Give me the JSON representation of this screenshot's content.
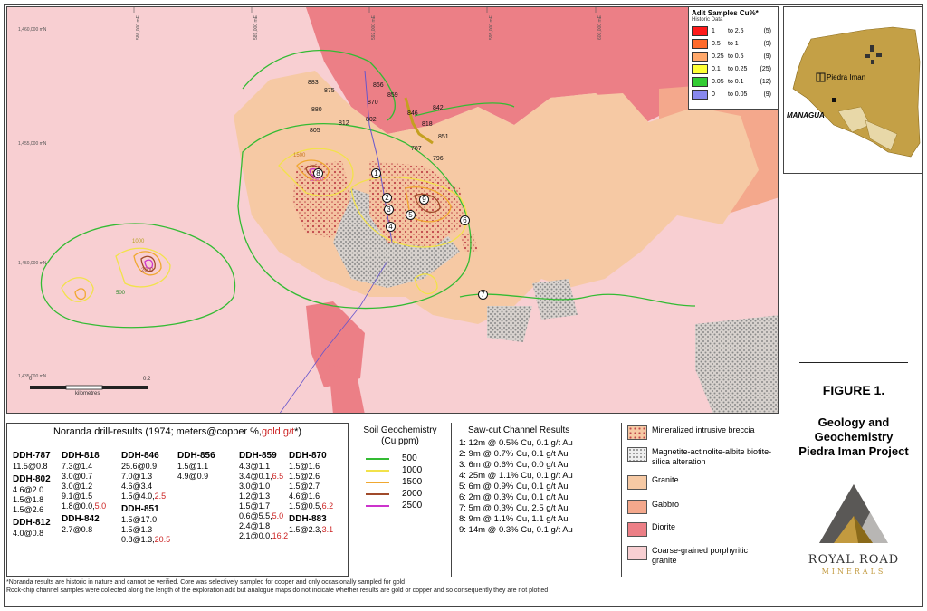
{
  "map": {
    "coords_y": [
      "1,460,000 mN",
      "1,455,000 mN",
      "1,450,000 mN",
      "1,435,000 mN"
    ],
    "coords_x": [
      "586,000 mE",
      "589,000 mE",
      "592,000 mE",
      "595,000 mE",
      "600,000 mE"
    ],
    "drill_holes": [
      "883",
      "875",
      "866",
      "870",
      "859",
      "842",
      "880",
      "846",
      "818",
      "802",
      "812",
      "805",
      "851",
      "787",
      "796"
    ],
    "channel_numbers": [
      "1",
      "2",
      "3",
      "4",
      "5",
      "6",
      "7",
      "8",
      "9"
    ],
    "contour_labels": [
      "500",
      "1000",
      "1500",
      "2000",
      "2500"
    ],
    "scale_start": "0",
    "scale_end": "0.2",
    "scale_unit": "kilometres"
  },
  "adit_legend": {
    "title": "Adit Samples Cu%*",
    "subtitle": "Historic Data",
    "rows": [
      {
        "lo": "1",
        "hi": "to 2.5",
        "count": "(5)",
        "color": "#ff1a1a"
      },
      {
        "lo": "0.5",
        "hi": "to 1",
        "count": "(9)",
        "color": "#ff6a2a"
      },
      {
        "lo": "0.25",
        "hi": "to 0.5",
        "count": "(9)",
        "color": "#ffa86a"
      },
      {
        "lo": "0.1",
        "hi": "to 0.25",
        "count": "(25)",
        "color": "#ffff33"
      },
      {
        "lo": "0.05",
        "hi": "to 0.1",
        "count": "(12)",
        "color": "#33cc33"
      },
      {
        "lo": "0",
        "hi": "to 0.05",
        "count": "(9)",
        "color": "#8888ee"
      }
    ]
  },
  "inset": {
    "place_label": "Piedra Iman",
    "capital_label": "MANAGUA"
  },
  "figure": {
    "number": "FIGURE 1.",
    "title_lines": [
      "Geology and",
      "Geochemistry",
      "Piedra Iman Project"
    ]
  },
  "logo": {
    "name": "ROYAL ROAD",
    "sub": "MINERALS"
  },
  "drill": {
    "header_main": "Noranda drill-results (1974; meters@copper %,",
    "header_gold": "gold g/t",
    "header_end": "*)",
    "columns": [
      {
        "blocks": [
          {
            "hole": "DDH-787",
            "lines": [
              [
                "11.5@0.8",
                ""
              ]
            ]
          },
          {
            "hole": "DDH-802",
            "lines": [
              [
                "4.6@2.0",
                ""
              ],
              [
                "1.5@1.8",
                ""
              ],
              [
                "1.5@2.6",
                ""
              ]
            ]
          },
          {
            "hole": "DDH-812",
            "lines": [
              [
                "4.0@0.8",
                ""
              ]
            ]
          }
        ]
      },
      {
        "blocks": [
          {
            "hole": "DDH-818",
            "lines": [
              [
                "7.3@1.4",
                ""
              ],
              [
                "3.0@0.7",
                ""
              ],
              [
                "3.0@1.2",
                ""
              ],
              [
                "9.1@1.5",
                ""
              ],
              [
                "1.8@0.0,",
                "5.0"
              ]
            ]
          },
          {
            "hole": "DDH-842",
            "lines": [
              [
                "2.7@0.8",
                ""
              ]
            ]
          }
        ]
      },
      {
        "blocks": [
          {
            "hole": "DDH-846",
            "lines": [
              [
                "25.6@0.9",
                ""
              ],
              [
                "7.0@1.3",
                ""
              ],
              [
                "4.6@3.4",
                ""
              ],
              [
                "1.5@4.0,",
                "2.5"
              ]
            ]
          },
          {
            "hole": "DDH-851",
            "lines": [
              [
                "1.5@17.0",
                ""
              ],
              [
                "1.5@1.3",
                ""
              ],
              [
                "0.8@1.3,",
                "20.5"
              ]
            ]
          }
        ]
      },
      {
        "blocks": [
          {
            "hole": "DDH-856",
            "lines": [
              [
                "1.5@1.1",
                ""
              ],
              [
                "4.9@0.9",
                ""
              ]
            ]
          }
        ]
      },
      {
        "blocks": [
          {
            "hole": "DDH-859",
            "lines": [
              [
                "4.3@1.1",
                ""
              ],
              [
                "3.4@0.1,",
                "6.5"
              ],
              [
                "3.0@1.0",
                ""
              ],
              [
                "1.2@1.3",
                ""
              ],
              [
                "1.5@1.7",
                ""
              ],
              [
                "0.6@5.5,",
                "5.0"
              ],
              [
                "2.4@1.8",
                ""
              ],
              [
                "2.1@0.0,",
                "16.2"
              ]
            ]
          }
        ]
      },
      {
        "blocks": [
          {
            "hole": "DDH-870",
            "lines": [
              [
                "1.5@1.6",
                ""
              ],
              [
                "1.5@2.6",
                ""
              ],
              [
                "1.5@2.7",
                ""
              ],
              [
                "4.6@1.6",
                ""
              ],
              [
                "1.5@0.5,",
                "6.2"
              ]
            ]
          },
          {
            "hole": "DDH-883",
            "lines": [
              [
                "1.5@2.3,",
                "3.1"
              ]
            ]
          }
        ]
      }
    ]
  },
  "soil": {
    "title": "Soil Geochemistry",
    "unit": "(Cu ppm)",
    "rows": [
      {
        "value": "500",
        "color": "#33bb33"
      },
      {
        "value": "1000",
        "color": "#f2e24a"
      },
      {
        "value": "1500",
        "color": "#f0a830"
      },
      {
        "value": "2000",
        "color": "#a04a2a"
      },
      {
        "value": "2500",
        "color": "#cc33cc"
      }
    ]
  },
  "channels": {
    "title": "Saw-cut Channel Results",
    "rows": [
      "1: 12m  @ 0.5% Cu, 0.1 g/t Au",
      "2: 9m    @ 0.7% Cu, 0.1 g/t Au",
      "3: 6m    @ 0.6% Cu, 0.0 g/t Au",
      "4: 25m  @ 1.1% Cu, 0.1 g/t Au",
      "5: 6m    @ 0.9% Cu, 0.1 g/t Au",
      "6: 2m    @ 0.3% Cu, 0.1 g/t Au",
      "7: 5m    @ 0.3% Cu, 2.5 g/t Au",
      "8: 9m    @ 1.1% Cu, 1.1 g/t Au",
      "9: 14m  @ 0.3% Cu, 0.1 g/t Au"
    ]
  },
  "geology": {
    "units": [
      {
        "label": "Mineralized intrusive breccia",
        "color": "#f6c9a4",
        "pattern": "dots"
      },
      {
        "label": "Magnetite-actinolite-albite biotite-silica alteration",
        "color": "#eeeeee",
        "pattern": "hatch"
      },
      {
        "label": "Granite",
        "color": "#f6c9a4",
        "pattern": "none"
      },
      {
        "label": "Gabbro",
        "color": "#f4a88c",
        "pattern": "none"
      },
      {
        "label": "Diorite",
        "color": "#ec7f86",
        "pattern": "none"
      },
      {
        "label": "Coarse-grained porphyritic granite",
        "color": "#f8cfd2",
        "pattern": "none"
      }
    ]
  },
  "footnotes": [
    "*Noranda results are historic in nature and cannot be verified. Core was selectively sampled for copper and only occasionally sampled for gold",
    "Rock-chip channel samples were collected along the length of the exploration adit but analogue maps do not indicate whether results are gold or copper and so consequently they are not plotted"
  ]
}
